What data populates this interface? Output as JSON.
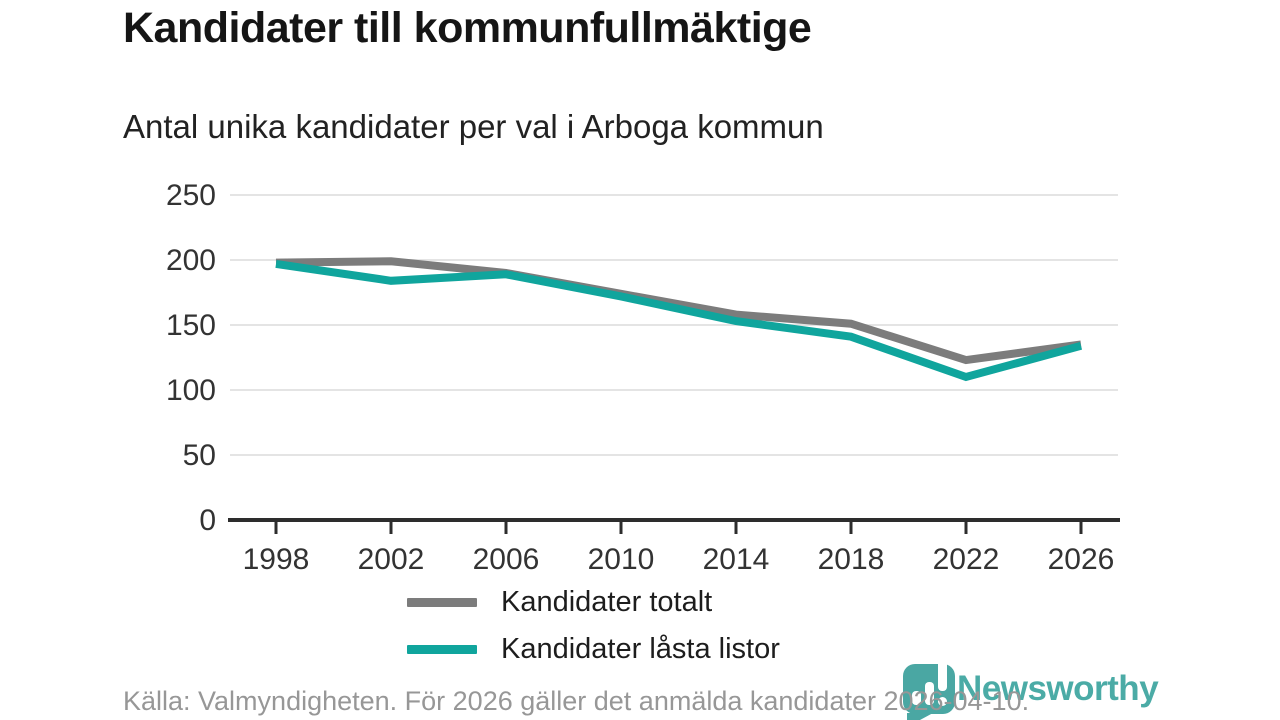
{
  "header": {
    "title": "Kandidater till kommunfullmäktige",
    "subtitle": "Antal unika kandidater per val i Arboga kommun"
  },
  "chart_data": {
    "type": "line",
    "title": "Kandidater till kommunfullmäktige",
    "subtitle": "Antal unika kandidater per val i Arboga kommun",
    "x": [
      1998,
      2002,
      2006,
      2010,
      2014,
      2018,
      2022,
      2026
    ],
    "series": [
      {
        "name": "Kandidater totalt",
        "color": "#7c7c7c",
        "values": [
          198,
          199,
          190,
          174,
          158,
          151,
          123,
          135
        ]
      },
      {
        "name": "Kandidater låsta listor",
        "color": "#10a59d",
        "values": [
          197,
          184,
          189,
          172,
          153,
          141,
          110,
          134
        ]
      }
    ],
    "ylim": [
      0,
      250
    ],
    "ytick_step": 50,
    "yticks": [
      0,
      50,
      100,
      150,
      200,
      250
    ],
    "xlabel": "",
    "ylabel": "",
    "grid": "horizontal-only",
    "legend_position": "inside bottom-left"
  },
  "footer": {
    "source_text": "Källa: Valmyndigheten. För 2026 gäller det anmälda kandidater 2026-04-10.",
    "brand": "Newsworthy",
    "brand_color": "#42a7a2",
    "logo_color": "#4aa7a3"
  },
  "colors": {
    "grid": "#e4e4e4",
    "axis": "#2d2d2d",
    "tick_label": "#333333"
  }
}
